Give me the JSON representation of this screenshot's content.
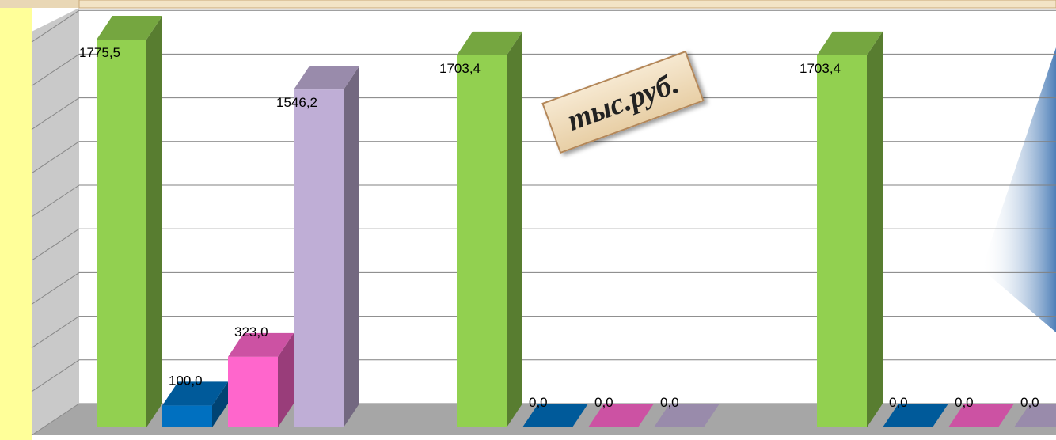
{
  "chart_data": {
    "type": "bar3d",
    "categories": [
      null,
      null,
      null
    ],
    "series": [
      {
        "color": "#92d050",
        "values": [
          1775.5,
          1703.4,
          1703.4
        ],
        "value_labels": [
          "1775,5",
          "1703,4",
          "1703,4"
        ]
      },
      {
        "color": "#0070c0",
        "values": [
          100.0,
          0.0,
          0.0
        ],
        "value_labels": [
          "100,0",
          "0,0",
          "0,0"
        ]
      },
      {
        "color": "#ff66cc",
        "values": [
          323.0,
          0.0,
          0.0
        ],
        "value_labels": [
          "323,0",
          "0,0",
          "0,0"
        ]
      },
      {
        "color": "#bfaed6",
        "values": [
          1546.2,
          0.0,
          0.0
        ],
        "value_labels": [
          "1546,2",
          "0,0",
          "0,0"
        ]
      }
    ],
    "ylim": [
      0,
      2000
    ],
    "yticks": [
      0,
      200,
      400,
      600,
      800,
      1000,
      1200,
      1400,
      1600,
      1800,
      2000
    ],
    "grid": true,
    "annotation": "тыс.руб."
  }
}
